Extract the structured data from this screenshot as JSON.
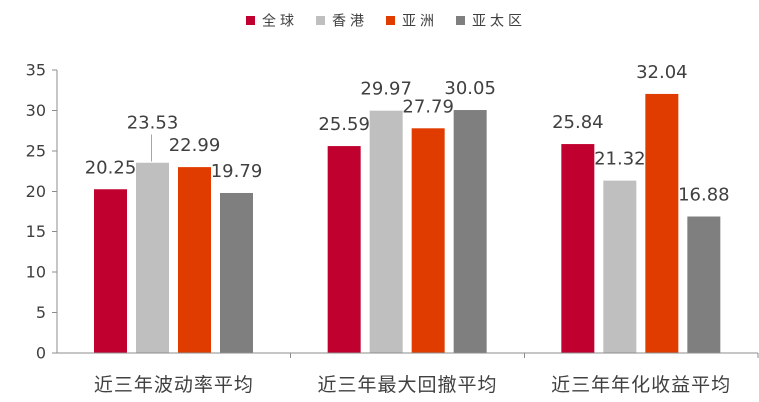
{
  "chart_data": {
    "type": "bar",
    "categories": [
      "近三年波动率平均",
      "近三年最大回撤平均",
      "近三年年化收益平均"
    ],
    "series": [
      {
        "name": "全球",
        "values": [
          20.25,
          25.59,
          25.84
        ],
        "color": "#C0002F"
      },
      {
        "name": "香港",
        "values": [
          23.53,
          29.97,
          21.32
        ],
        "color": "#BFBFBF"
      },
      {
        "name": "亚洲",
        "values": [
          22.99,
          27.79,
          32.04
        ],
        "color": "#E03C00"
      },
      {
        "name": "亚太区",
        "values": [
          19.79,
          30.05,
          16.88
        ],
        "color": "#7F7F7F"
      }
    ],
    "ylim": [
      0,
      35
    ],
    "yticks": [
      0,
      5,
      10,
      15,
      20,
      25,
      30,
      35
    ],
    "grid": false,
    "legend": "top-center"
  }
}
